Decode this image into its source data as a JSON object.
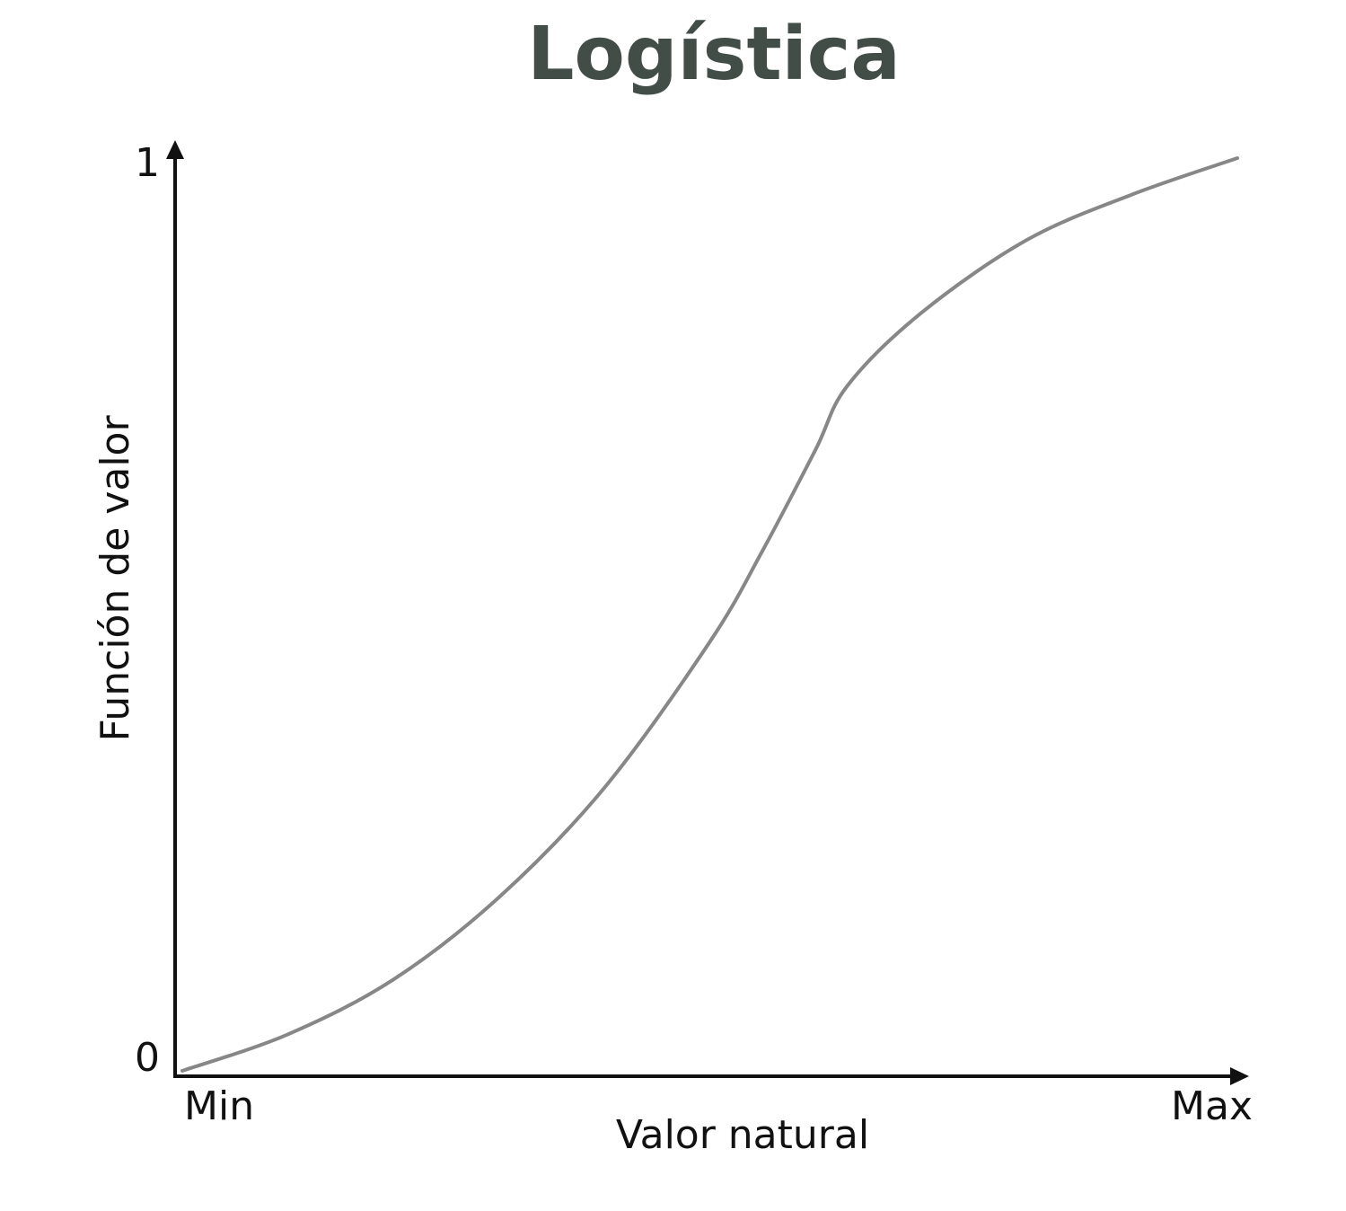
{
  "chart_data": {
    "type": "line",
    "title": "Logística",
    "xlabel": "Valor natural",
    "ylabel": "Función de valor",
    "x_tick_labels": [
      "Min",
      "Max"
    ],
    "y_tick_labels": [
      "0",
      "1"
    ],
    "xlim": [
      0,
      1
    ],
    "ylim": [
      0,
      1
    ],
    "grid": false,
    "legend": "none",
    "series": [
      {
        "color": "#878787",
        "x": [
          0.0,
          0.1,
          0.2,
          0.3,
          0.4,
          0.5,
          0.55,
          0.6,
          0.63,
          0.7,
          0.8,
          0.9,
          1.0
        ],
        "y": [
          0.0,
          0.04,
          0.1,
          0.19,
          0.31,
          0.47,
          0.57,
          0.68,
          0.75,
          0.83,
          0.91,
          0.96,
          1.0
        ]
      }
    ],
    "colors": {
      "title": "#434d48",
      "axis": "#111111",
      "curve": "#878787"
    }
  }
}
